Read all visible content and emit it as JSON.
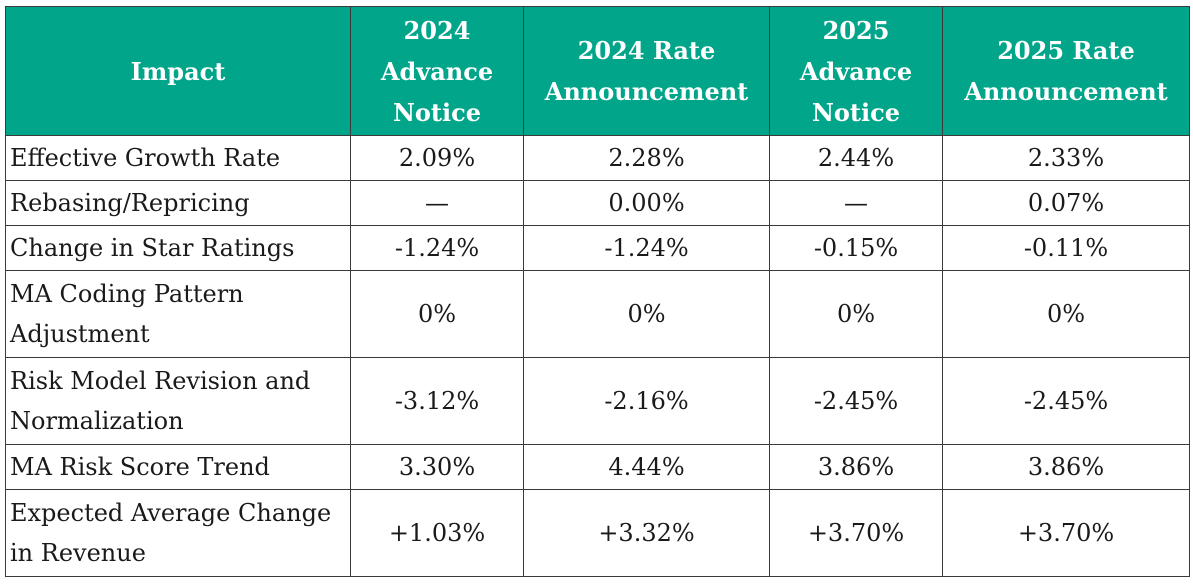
{
  "table": {
    "headers": [
      "Impact",
      "2024 Advance Notice",
      "2024 Rate Announcement",
      "2025 Advance Notice",
      "2025 Rate Announcement"
    ],
    "rows": [
      [
        "Effective Growth Rate",
        "2.09%",
        "2.28%",
        "2.44%",
        "2.33%"
      ],
      [
        "Rebasing/Repricing",
        "—",
        "0.00%",
        "—",
        "0.07%"
      ],
      [
        "Change in Star Ratings",
        "-1.24%",
        "-1.24%",
        "-0.15%",
        "-0.11%"
      ],
      [
        "MA Coding Pattern Adjustment",
        "0%",
        "0%",
        "0%",
        "0%"
      ],
      [
        "Risk Model Revision and Normalization",
        "-3.12%",
        "-2.16%",
        "-2.45%",
        "-2.45%"
      ],
      [
        "MA Risk Score Trend",
        "3.30%",
        "4.44%",
        "3.86%",
        "3.86%"
      ],
      [
        "Expected Average Change in Revenue",
        "+1.03%",
        "+3.32%",
        "+3.70%",
        "+3.70%"
      ]
    ],
    "header_color": "#00a58a"
  }
}
